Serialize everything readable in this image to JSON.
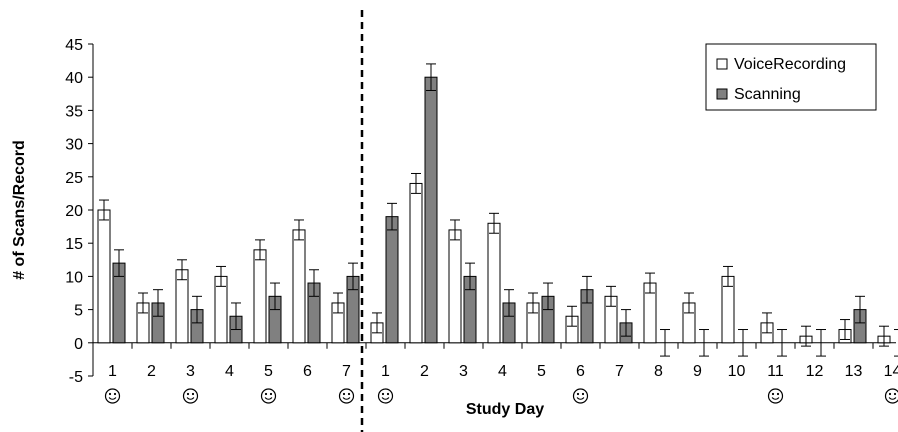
{
  "chart_data": {
    "type": "bar",
    "title": "",
    "xlabel": "Study Day",
    "ylabel": "# of Scans/Record",
    "ylim": [
      -5,
      45
    ],
    "yticks": [
      -5,
      0,
      5,
      10,
      15,
      20,
      25,
      30,
      35,
      40,
      45
    ],
    "grid": false,
    "legend_position": "top-right",
    "divider_after_category_index": 6,
    "categories": [
      "1",
      "2",
      "3",
      "4",
      "5",
      "6",
      "7",
      "1",
      "2",
      "3",
      "4",
      "5",
      "6",
      "7",
      "8",
      "9",
      "10",
      "11",
      "12",
      "13",
      "14"
    ],
    "smiley_category_indices": [
      0,
      2,
      4,
      6,
      7,
      12,
      17,
      20
    ],
    "series": [
      {
        "name": "VoiceRecording",
        "color": "#ffffff",
        "values": [
          20,
          6,
          11,
          10,
          14,
          17,
          6,
          3,
          24,
          17,
          18,
          6,
          4,
          7,
          9,
          6,
          10,
          3,
          1,
          2,
          1
        ],
        "errors": [
          1.5,
          1.5,
          1.5,
          1.5,
          1.5,
          1.5,
          1.5,
          1.5,
          1.5,
          1.5,
          1.5,
          1.5,
          1.5,
          1.5,
          1.5,
          1.5,
          1.5,
          1.5,
          1.5,
          1.5,
          1.5
        ]
      },
      {
        "name": "Scanning",
        "color": "#808080",
        "values": [
          12,
          6,
          5,
          4,
          7,
          9,
          10,
          19,
          40,
          10,
          6,
          7,
          8,
          3,
          0,
          0,
          0,
          0,
          0,
          5,
          0
        ],
        "errors": [
          2,
          2,
          2,
          2,
          2,
          2,
          2,
          2,
          2,
          2,
          2,
          2,
          2,
          2,
          2,
          2,
          2,
          2,
          2,
          2,
          2
        ]
      }
    ]
  }
}
